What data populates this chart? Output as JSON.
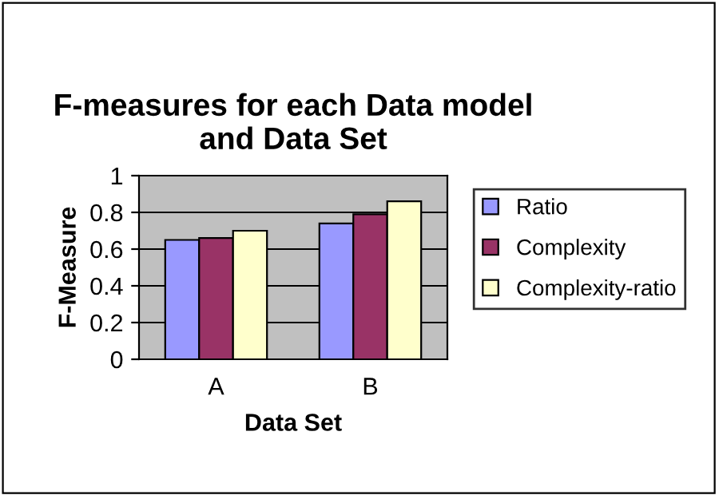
{
  "chart_data": {
    "type": "bar",
    "title": "F-measures for each Data model\nand Data Set",
    "xlabel": "Data Set",
    "ylabel": "F-Measure",
    "categories": [
      "A",
      "B"
    ],
    "series": [
      {
        "name": "Ratio",
        "color": "#9999ff",
        "values": [
          0.65,
          0.74
        ]
      },
      {
        "name": "Complexity",
        "color": "#993366",
        "values": [
          0.66,
          0.79
        ]
      },
      {
        "name": "Complexity-ratio",
        "color": "#ffffcc",
        "values": [
          0.7,
          0.86
        ]
      }
    ],
    "ylim": [
      0,
      1
    ],
    "yticks": [
      0,
      0.2,
      0.4,
      0.6,
      0.8,
      1
    ],
    "grid": "y",
    "legend": "right"
  }
}
